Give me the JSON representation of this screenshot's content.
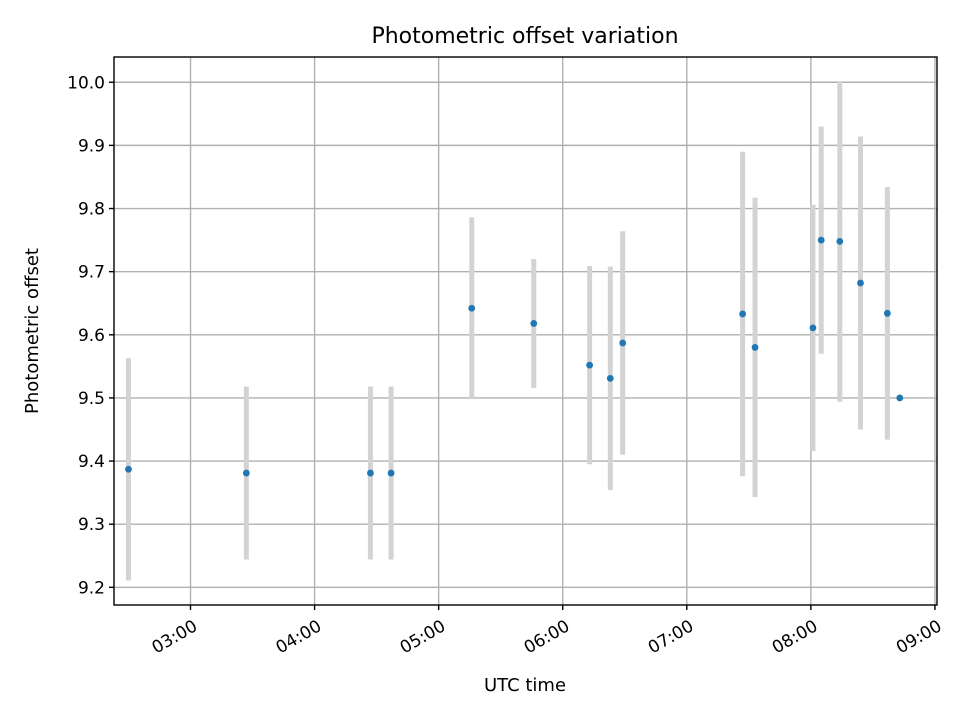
{
  "chart_data": {
    "type": "scatter",
    "title": "Photometric offset variation",
    "xlabel": "UTC time",
    "ylabel": "Photometric offset",
    "x_ticks": [
      "03:00",
      "04:00",
      "05:00",
      "06:00",
      "07:00",
      "08:00",
      "09:00"
    ],
    "y_ticks": [
      "9.2",
      "9.3",
      "9.4",
      "9.5",
      "9.6",
      "9.7",
      "9.8",
      "9.9",
      "10.0"
    ],
    "xlim": [
      "02:23",
      "09:01"
    ],
    "ylim": [
      9.172,
      10.04
    ],
    "grid": true,
    "series": [
      {
        "marker_color": "#1f77b4",
        "errorbar_color": "#d3d3d3",
        "points": [
          {
            "x": "02:30",
            "y": 9.387,
            "err": 0.176
          },
          {
            "x": "03:27",
            "y": 9.381,
            "err": 0.137
          },
          {
            "x": "04:27",
            "y": 9.381,
            "err": 0.137
          },
          {
            "x": "04:37",
            "y": 9.381,
            "err": 0.137
          },
          {
            "x": "05:16",
            "y": 9.642,
            "err": 0.144
          },
          {
            "x": "05:46",
            "y": 9.618,
            "err": 0.102
          },
          {
            "x": "06:13",
            "y": 9.552,
            "err": 0.157
          },
          {
            "x": "06:23",
            "y": 9.531,
            "err": 0.177
          },
          {
            "x": "06:29",
            "y": 9.587,
            "err": 0.177
          },
          {
            "x": "07:27",
            "y": 9.633,
            "err": 0.257
          },
          {
            "x": "07:33",
            "y": 9.58,
            "err": 0.237
          },
          {
            "x": "08:01",
            "y": 9.611,
            "err": 0.195
          },
          {
            "x": "08:05",
            "y": 9.75,
            "err": 0.18
          },
          {
            "x": "08:14",
            "y": 9.748,
            "err": 0.254
          },
          {
            "x": "08:24",
            "y": 9.682,
            "err": 0.232
          },
          {
            "x": "08:37",
            "y": 9.634,
            "err": 0.2
          },
          {
            "x": "08:43",
            "y": 9.5,
            "err": 0.0
          }
        ]
      }
    ]
  }
}
